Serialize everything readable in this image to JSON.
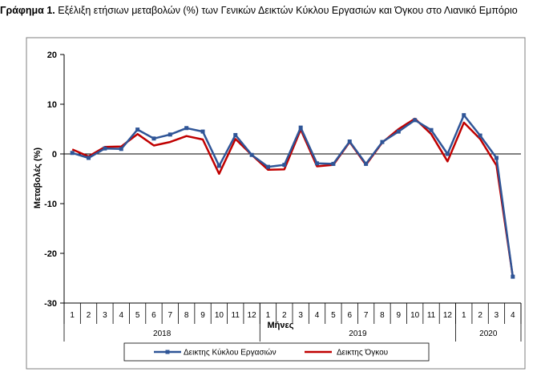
{
  "caption": {
    "prefix": "Γράφημα 1.",
    "text": "Εξέλιξη ετήσιων μεταβολών (%) των Γενικών Δεικτών Κύκλου Εργασιών και Όγκου στο Λιανικό Εμπόριο"
  },
  "colors": {
    "series_1": "#2f5597",
    "series_2": "#c00000",
    "axis": "#000000",
    "frame": "#7f7f7f"
  },
  "chart_data": {
    "type": "line",
    "title": "Εξέλιξη ετήσιων μεταβολών (%) των Γενικών Δεικτών Κύκλου Εργασιών και Όγκου στο Λιανικό Εμπόριο",
    "xlabel": "Μήνες",
    "ylabel": "Μεταβολές (%)",
    "ylim": [
      -30,
      20
    ],
    "yticks": [
      20,
      10,
      0,
      -10,
      -20,
      -30
    ],
    "grid": false,
    "legend_position": "bottom",
    "categories": [
      "1",
      "2",
      "3",
      "4",
      "5",
      "6",
      "7",
      "8",
      "9",
      "10",
      "11",
      "12",
      "1",
      "2",
      "3",
      "4",
      "5",
      "6",
      "7",
      "8",
      "9",
      "10",
      "11",
      "12",
      "1",
      "2",
      "3",
      "4"
    ],
    "years": [
      {
        "label": "2018",
        "months": 12
      },
      {
        "label": "2019",
        "months": 12
      },
      {
        "label": "2020",
        "months": 4
      }
    ],
    "series": [
      {
        "name": "Δεικτης Κύκλου Εργασιών",
        "values": [
          0.2,
          -0.8,
          1.1,
          1.0,
          4.9,
          3.1,
          3.9,
          5.2,
          4.5,
          -2.4,
          3.8,
          -0.2,
          -2.6,
          -2.2,
          5.3,
          -1.9,
          -2.0,
          2.5,
          -2.0,
          2.4,
          4.5,
          6.8,
          4.8,
          0.0,
          7.8,
          3.7,
          -0.8,
          -24.7
        ]
      },
      {
        "name": "Δεικτης Όγκου",
        "values": [
          0.9,
          -0.5,
          1.4,
          1.5,
          4.0,
          1.7,
          2.4,
          3.6,
          2.9,
          -4.0,
          3.0,
          -0.2,
          -3.2,
          -3.1,
          4.9,
          -2.5,
          -2.2,
          2.4,
          -2.2,
          2.3,
          5.0,
          7.1,
          4.0,
          -1.5,
          6.3,
          3.0,
          -2.3,
          -24.7
        ]
      }
    ]
  }
}
